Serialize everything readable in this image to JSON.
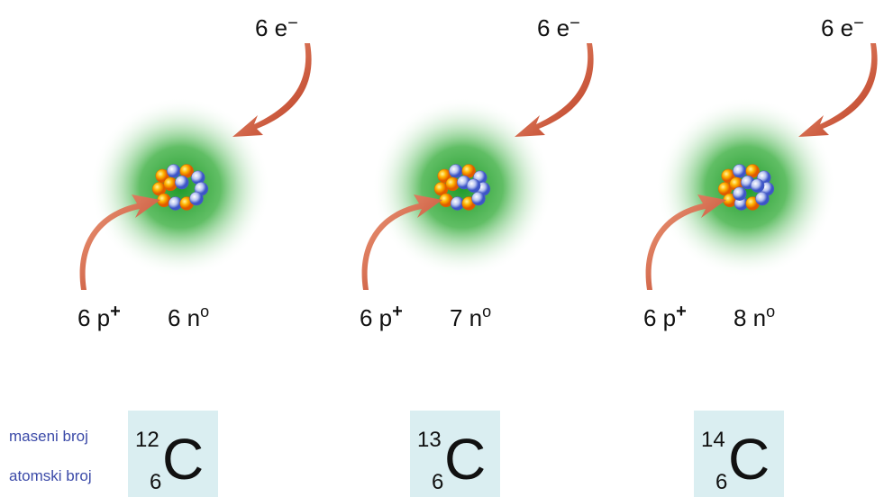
{
  "labels": {
    "mass": "maseni broj",
    "atomic": "atomski broj"
  },
  "isotopes": [
    {
      "electrons": {
        "count": "6 e",
        "charge": "−"
      },
      "protons": {
        "count": "6 p",
        "charge": "+"
      },
      "neutrons": {
        "count": "6 n",
        "charge": "o"
      },
      "mass_number": "12",
      "atomic_number": "6",
      "symbol": "C"
    },
    {
      "electrons": {
        "count": "6 e",
        "charge": "−"
      },
      "protons": {
        "count": "6 p",
        "charge": "+"
      },
      "neutrons": {
        "count": "7 n",
        "charge": "o"
      },
      "mass_number": "13",
      "atomic_number": "6",
      "symbol": "C"
    },
    {
      "electrons": {
        "count": "6 e",
        "charge": "−"
      },
      "protons": {
        "count": "6 p",
        "charge": "+"
      },
      "neutrons": {
        "count": "8 n",
        "charge": "o"
      },
      "mass_number": "14",
      "atomic_number": "6",
      "symbol": "C"
    }
  ]
}
